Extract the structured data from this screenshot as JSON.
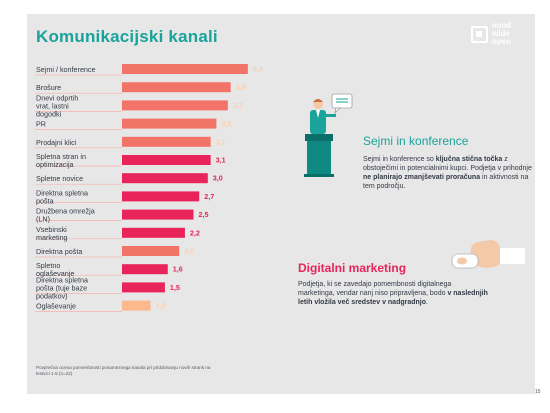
{
  "page": {
    "title": "Komunikacijski kanali",
    "logo_text": [
      "mind",
      "wide",
      "open"
    ],
    "page_number": "15"
  },
  "chart_data": {
    "type": "bar",
    "orientation": "horizontal",
    "categories": [
      "Sejmi / konference",
      "Brošure",
      "Dnevi odprtih vrat, lastni dogodki",
      "PR",
      "Prodajni klici",
      "Spletna stran in optimizacija",
      "Spletne novice",
      "Direktna spletna pošta",
      "Družbena omrežja (LN)",
      "Vsebinski marketing",
      "Direktna pošta",
      "Spletno oglaševanje",
      "Direktna spletna pošta (tuje baze podatkov)",
      "Oglaševanje"
    ],
    "values": [
      4.4,
      3.8,
      3.7,
      3.3,
      3.1,
      3.1,
      3.0,
      2.7,
      2.5,
      2.2,
      2.0,
      1.6,
      1.5,
      1.0
    ],
    "value_labels": [
      "4,4",
      "3,8",
      "3,7",
      "3,3",
      "3,1",
      "3,1",
      "3,0",
      "2,7",
      "2,5",
      "2,2",
      "2,0",
      "1,6",
      "1,5",
      "1,0"
    ],
    "bar_colors": [
      "#f27468",
      "#f27468",
      "#f27468",
      "#f27468",
      "#f27468",
      "#e8245a",
      "#e8245a",
      "#e8245a",
      "#e8245a",
      "#e8245a",
      "#f27468",
      "#e8245a",
      "#e8245a",
      "#fbb98c"
    ],
    "value_label_colors": [
      "#fbd0b0",
      "#fbd0b0",
      "#fbd0b0",
      "#fbd0b0",
      "#fbd0b0",
      "#e8245a",
      "#e8245a",
      "#e8245a",
      "#e8245a",
      "#e8245a",
      "#fbd0b0",
      "#e8245a",
      "#e8245a",
      "#fbd0b0"
    ],
    "xlim": [
      0,
      5
    ],
    "footnote": "Povprečna ocena pomembnosti posameznega kanala pri pridobivanju novih strank na lestvici 1-5 (n=22)"
  },
  "sections": {
    "sejmi": {
      "heading": "Sejmi in konference",
      "t1": "Sejmi in konference so ",
      "b1": "ključna stična točka",
      "t2": " z obstoječimi in potencialnimi kupci. Podjetja v prihodnje ",
      "b2": "ne planirajo zmanjševati proračuna",
      "t3": " in aktivnosti na tem področju."
    },
    "digitalni": {
      "heading": "Digitalni marketing",
      "t1": "Podjetja, ki se zavedajo pomembnosti digitalnega marketinga, vendar nanj niso pripravljena, bodo ",
      "b1": "v naslednjih letih vložila več sredstev",
      "t2": " ",
      "b2": "v nadgradnjo",
      "t3": "."
    }
  },
  "colors": {
    "teal": "#1aa39a",
    "pink": "#e8245a",
    "salmon": "#f27468",
    "peach": "#fbb98c",
    "panel": "#e7e7e8"
  }
}
